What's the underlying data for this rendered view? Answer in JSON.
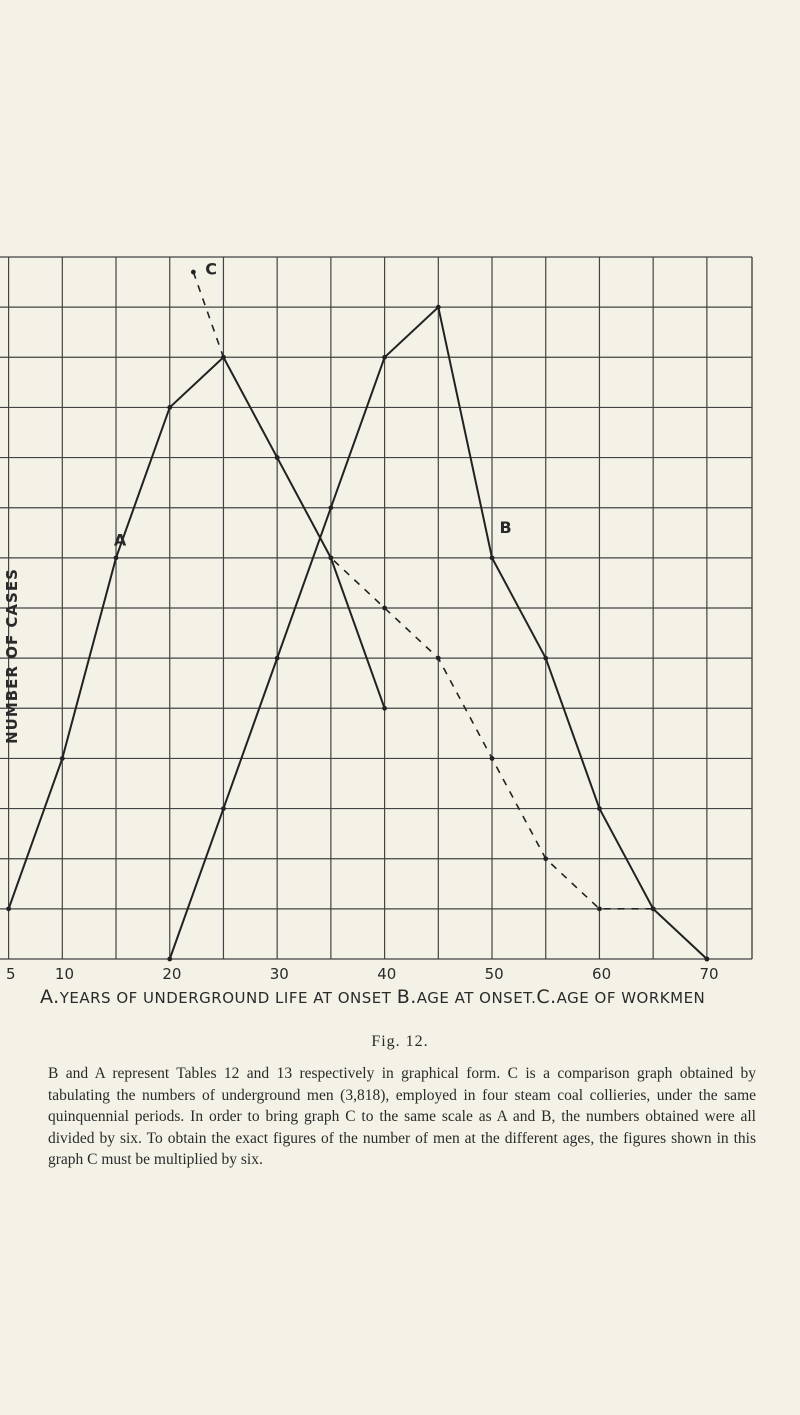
{
  "chart_data": {
    "type": "line",
    "ylabel": "NUMBER OF CASES",
    "xlabel_parts": [
      {
        "letter": "A.",
        "text": "YEARS OF UNDERGROUND LIFE AT ONSET "
      },
      {
        "letter": "B.",
        "text": "AGE AT ONSET."
      },
      {
        "letter": "C.",
        "text": "AGE OF WORKMEN"
      }
    ],
    "x_ticks": [
      "5",
      "10",
      "20",
      "30",
      "40",
      "50",
      "60",
      "70"
    ],
    "x_tick_values": [
      5,
      10,
      20,
      30,
      40,
      50,
      60,
      70
    ],
    "xlim": [
      4,
      74
    ],
    "ylim": [
      0,
      14
    ],
    "grid": true,
    "series": [
      {
        "name": "A",
        "style": "solid",
        "x": [
          4.8,
          9.8,
          14.8,
          19.8,
          24.8,
          29.8,
          34.8,
          39.8
        ],
        "y": [
          1,
          4,
          8,
          11,
          12,
          10,
          8,
          5
        ]
      },
      {
        "name": "B",
        "style": "solid",
        "x": [
          19.8,
          24.8,
          29.8,
          34.8,
          39.8,
          44.8,
          49.8,
          54.8,
          59.8,
          64.8,
          69.8
        ],
        "y": [
          0,
          3,
          6,
          9,
          12,
          13,
          8,
          6,
          3,
          1,
          0
        ]
      },
      {
        "name": "C",
        "style": "dashed",
        "x": [
          22,
          24.8,
          29.8,
          34.8,
          39.8,
          44.8,
          49.8,
          54.8,
          59.8,
          64.8,
          69.8
        ],
        "y": [
          13.7,
          12,
          10,
          8,
          7,
          6,
          4,
          2,
          1,
          1,
          0
        ]
      }
    ]
  },
  "figure": {
    "caption": "Fig. 12.",
    "text": "B and A represent Tables 12 and 13 respectively in graphical form. C is a comparison graph obtained by tabulating the numbers of underground men (3,818), employed in four steam coal collieries, under the same quinquennial periods. In order to bring graph C to the same scale as A and B, the numbers obtained were all divided by six. To obtain the exact figures of the number of men at the different ages, the figures shown in this graph C must be multiplied by six."
  }
}
